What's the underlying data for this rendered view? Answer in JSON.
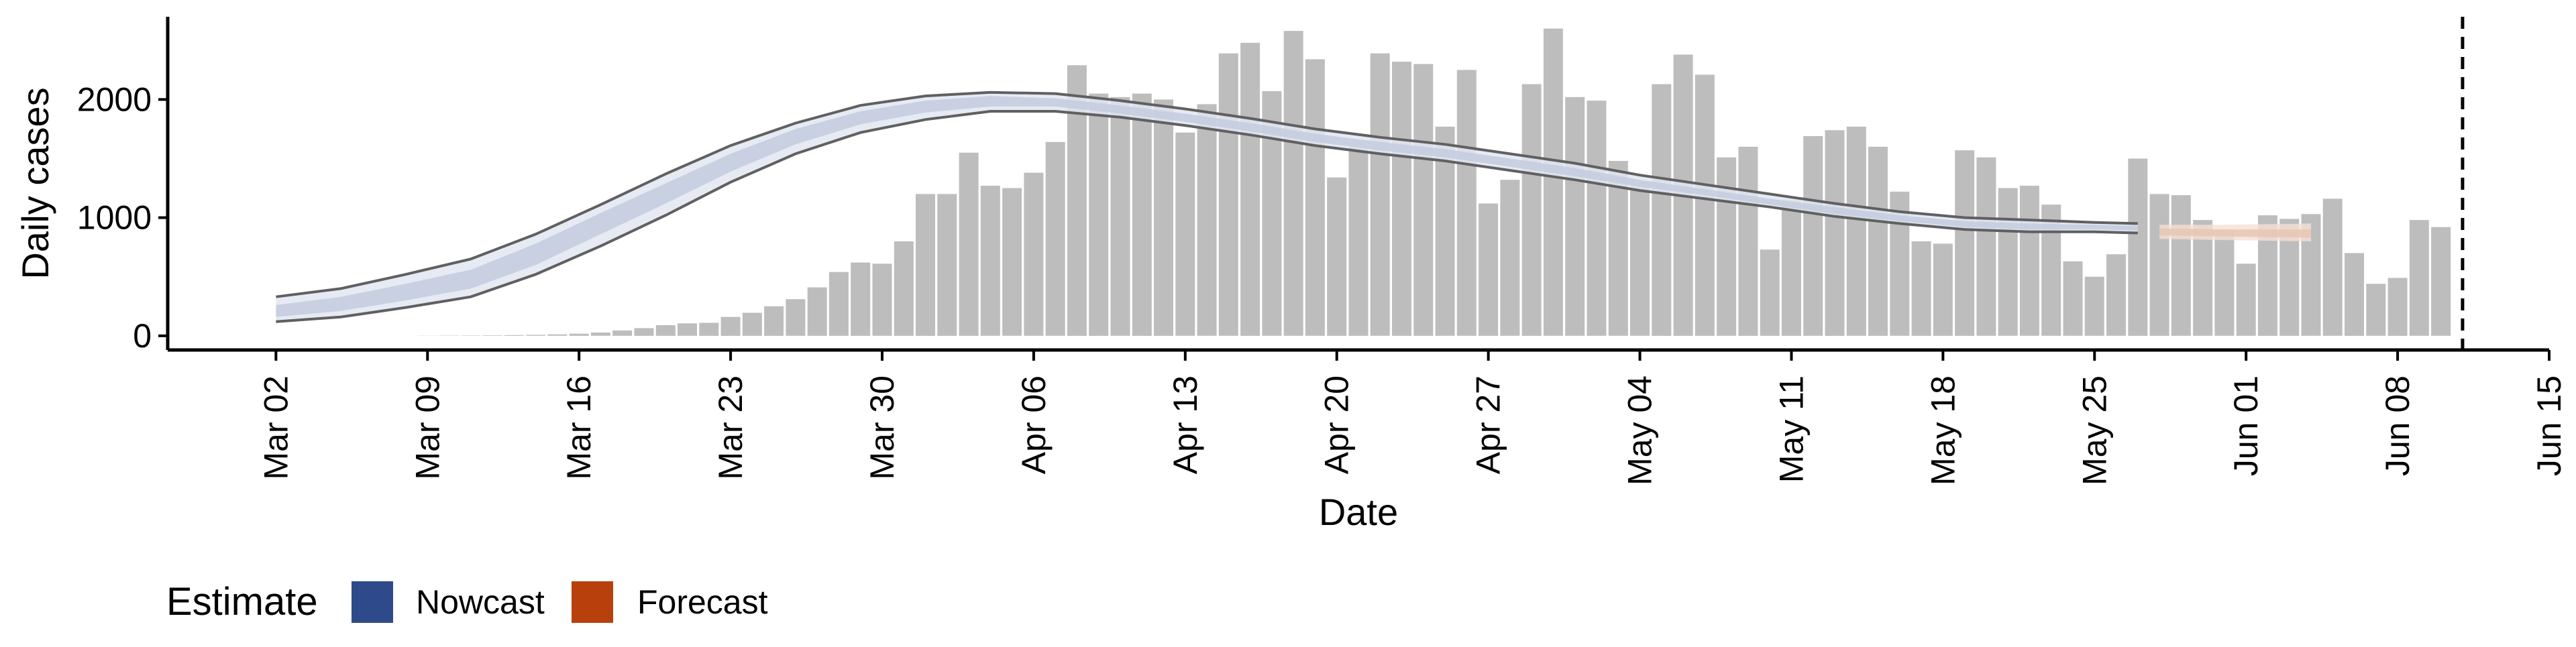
{
  "chart_data": {
    "type": "bar",
    "xlabel": "Date",
    "ylabel": "Daily cases",
    "x_ticks": [
      "Mar 02",
      "Mar 09",
      "Mar 16",
      "Mar 23",
      "Mar 30",
      "Apr 06",
      "Apr 13",
      "Apr 20",
      "Apr 27",
      "May 04",
      "May 11",
      "May 18",
      "May 25",
      "Jun 01",
      "Jun 08",
      "Jun 15"
    ],
    "y_ticks": [
      "0",
      "1000",
      "2000"
    ],
    "ylim": [
      -120,
      2700
    ],
    "xlim_days": [
      -5,
      105
    ],
    "grid": false,
    "legend": {
      "title": "Estimate",
      "position": "bottom-left",
      "entries": [
        {
          "label": "Nowcast",
          "color": "#2f4a8a"
        },
        {
          "label": "Forecast",
          "color": "#b8400d"
        }
      ]
    },
    "colors": {
      "bars": "#bdbdbd",
      "nowcast_band_outer": "#e1e6f1",
      "nowcast_band_inner": "#c5cde0",
      "band_edge_lines": "#606060",
      "forecast_band_outer": "#f4e0d5",
      "forecast_band_inner": "#e8c6b4",
      "vline": "#000000"
    },
    "vline_date": "Jun 11",
    "cases": [
      {
        "date": "Mar 02",
        "value": 0
      },
      {
        "date": "Mar 03",
        "value": 0
      },
      {
        "date": "Mar 04",
        "value": 0
      },
      {
        "date": "Mar 05",
        "value": 0
      },
      {
        "date": "Mar 06",
        "value": 0
      },
      {
        "date": "Mar 07",
        "value": 0
      },
      {
        "date": "Mar 08",
        "value": 0
      },
      {
        "date": "Mar 09",
        "value": 1
      },
      {
        "date": "Mar 10",
        "value": 2
      },
      {
        "date": "Mar 11",
        "value": 3
      },
      {
        "date": "Mar 12",
        "value": 4
      },
      {
        "date": "Mar 13",
        "value": 6
      },
      {
        "date": "Mar 14",
        "value": 8
      },
      {
        "date": "Mar 15",
        "value": 12
      },
      {
        "date": "Mar 16",
        "value": 18
      },
      {
        "date": "Mar 17",
        "value": 28
      },
      {
        "date": "Mar 18",
        "value": 45
      },
      {
        "date": "Mar 19",
        "value": 65
      },
      {
        "date": "Mar 20",
        "value": 90
      },
      {
        "date": "Mar 21",
        "value": 105
      },
      {
        "date": "Mar 22",
        "value": 110
      },
      {
        "date": "Mar 23",
        "value": 160
      },
      {
        "date": "Mar 24",
        "value": 195
      },
      {
        "date": "Mar 25",
        "value": 250
      },
      {
        "date": "Mar 26",
        "value": 310
      },
      {
        "date": "Mar 27",
        "value": 410
      },
      {
        "date": "Mar 28",
        "value": 540
      },
      {
        "date": "Mar 29",
        "value": 620
      },
      {
        "date": "Mar 30",
        "value": 610
      },
      {
        "date": "Mar 31",
        "value": 800
      },
      {
        "date": "Apr 01",
        "value": 1200
      },
      {
        "date": "Apr 02",
        "value": 1200
      },
      {
        "date": "Apr 03",
        "value": 1550
      },
      {
        "date": "Apr 04",
        "value": 1270
      },
      {
        "date": "Apr 05",
        "value": 1250
      },
      {
        "date": "Apr 06",
        "value": 1380
      },
      {
        "date": "Apr 07",
        "value": 1640
      },
      {
        "date": "Apr 08",
        "value": 2290
      },
      {
        "date": "Apr 09",
        "value": 2050
      },
      {
        "date": "Apr 10",
        "value": 2020
      },
      {
        "date": "Apr 11",
        "value": 2050
      },
      {
        "date": "Apr 12",
        "value": 2000
      },
      {
        "date": "Apr 13",
        "value": 1720
      },
      {
        "date": "Apr 14",
        "value": 1960
      },
      {
        "date": "Apr 15",
        "value": 2390
      },
      {
        "date": "Apr 16",
        "value": 2480
      },
      {
        "date": "Apr 17",
        "value": 2070
      },
      {
        "date": "Apr 18",
        "value": 2580
      },
      {
        "date": "Apr 19",
        "value": 2340
      },
      {
        "date": "Apr 20",
        "value": 1340
      },
      {
        "date": "Apr 21",
        "value": 1600
      },
      {
        "date": "Apr 22",
        "value": 2390
      },
      {
        "date": "Apr 23",
        "value": 2320
      },
      {
        "date": "Apr 24",
        "value": 2300
      },
      {
        "date": "Apr 25",
        "value": 1770
      },
      {
        "date": "Apr 26",
        "value": 2250
      },
      {
        "date": "Apr 27",
        "value": 1120
      },
      {
        "date": "Apr 28",
        "value": 1320
      },
      {
        "date": "Apr 29",
        "value": 2130
      },
      {
        "date": "Apr 30",
        "value": 2600
      },
      {
        "date": "May 01",
        "value": 2020
      },
      {
        "date": "May 02",
        "value": 1990
      },
      {
        "date": "May 03",
        "value": 1480
      },
      {
        "date": "May 04",
        "value": 1300
      },
      {
        "date": "May 05",
        "value": 2130
      },
      {
        "date": "May 06",
        "value": 2380
      },
      {
        "date": "May 07",
        "value": 2210
      },
      {
        "date": "May 08",
        "value": 1510
      },
      {
        "date": "May 09",
        "value": 1600
      },
      {
        "date": "May 10",
        "value": 730
      },
      {
        "date": "May 11",
        "value": 1150
      },
      {
        "date": "May 12",
        "value": 1690
      },
      {
        "date": "May 13",
        "value": 1740
      },
      {
        "date": "May 14",
        "value": 1770
      },
      {
        "date": "May 15",
        "value": 1600
      },
      {
        "date": "May 16",
        "value": 1220
      },
      {
        "date": "May 17",
        "value": 800
      },
      {
        "date": "May 18",
        "value": 780
      },
      {
        "date": "May 19",
        "value": 1570
      },
      {
        "date": "May 20",
        "value": 1510
      },
      {
        "date": "May 21",
        "value": 1250
      },
      {
        "date": "May 22",
        "value": 1270
      },
      {
        "date": "May 23",
        "value": 1110
      },
      {
        "date": "May 24",
        "value": 630
      },
      {
        "date": "May 25",
        "value": 500
      },
      {
        "date": "May 26",
        "value": 690
      },
      {
        "date": "May 27",
        "value": 1500
      },
      {
        "date": "May 28",
        "value": 1200
      },
      {
        "date": "May 29",
        "value": 1190
      },
      {
        "date": "May 30",
        "value": 980
      },
      {
        "date": "May 31",
        "value": 900
      },
      {
        "date": "Jun 01",
        "value": 610
      },
      {
        "date": "Jun 02",
        "value": 1020
      },
      {
        "date": "Jun 03",
        "value": 990
      },
      {
        "date": "Jun 04",
        "value": 1030
      },
      {
        "date": "Jun 05",
        "value": 1160
      },
      {
        "date": "Jun 06",
        "value": 700
      },
      {
        "date": "Jun 07",
        "value": 440
      },
      {
        "date": "Jun 08",
        "value": 490
      },
      {
        "date": "Jun 09",
        "value": 980
      },
      {
        "date": "Jun 10",
        "value": 920
      }
    ],
    "nowcast": {
      "estimate": "Nowcast",
      "points": [
        {
          "date": "Mar 02",
          "lower": 120,
          "inner_lower": 160,
          "inner_upper": 260,
          "upper": 330
        },
        {
          "date": "Mar 05",
          "lower": 160,
          "inner_lower": 210,
          "inner_upper": 330,
          "upper": 400
        },
        {
          "date": "Mar 08",
          "lower": 240,
          "inner_lower": 300,
          "inner_upper": 440,
          "upper": 520
        },
        {
          "date": "Mar 11",
          "lower": 330,
          "inner_lower": 400,
          "inner_upper": 560,
          "upper": 650
        },
        {
          "date": "Mar 14",
          "lower": 520,
          "inner_lower": 600,
          "inner_upper": 780,
          "upper": 860
        },
        {
          "date": "Mar 17",
          "lower": 760,
          "inner_lower": 860,
          "inner_upper": 1040,
          "upper": 1110
        },
        {
          "date": "Mar 20",
          "lower": 1020,
          "inner_lower": 1120,
          "inner_upper": 1290,
          "upper": 1370
        },
        {
          "date": "Mar 23",
          "lower": 1300,
          "inner_lower": 1390,
          "inner_upper": 1540,
          "upper": 1610
        },
        {
          "date": "Mar 26",
          "lower": 1540,
          "inner_lower": 1620,
          "inner_upper": 1750,
          "upper": 1800
        },
        {
          "date": "Mar 29",
          "lower": 1720,
          "inner_lower": 1790,
          "inner_upper": 1900,
          "upper": 1950
        },
        {
          "date": "Apr 01",
          "lower": 1830,
          "inner_lower": 1890,
          "inner_upper": 1990,
          "upper": 2030
        },
        {
          "date": "Apr 04",
          "lower": 1900,
          "inner_lower": 1940,
          "inner_upper": 2030,
          "upper": 2060
        },
        {
          "date": "Apr 07",
          "lower": 1900,
          "inner_lower": 1940,
          "inner_upper": 2010,
          "upper": 2050
        },
        {
          "date": "Apr 10",
          "lower": 1850,
          "inner_lower": 1880,
          "inner_upper": 1950,
          "upper": 1990
        },
        {
          "date": "Apr 13",
          "lower": 1780,
          "inner_lower": 1810,
          "inner_upper": 1880,
          "upper": 1920
        },
        {
          "date": "Apr 16",
          "lower": 1700,
          "inner_lower": 1730,
          "inner_upper": 1800,
          "upper": 1840
        },
        {
          "date": "Apr 19",
          "lower": 1610,
          "inner_lower": 1640,
          "inner_upper": 1710,
          "upper": 1750
        },
        {
          "date": "Apr 22",
          "lower": 1540,
          "inner_lower": 1570,
          "inner_upper": 1640,
          "upper": 1680
        },
        {
          "date": "Apr 25",
          "lower": 1480,
          "inner_lower": 1510,
          "inner_upper": 1580,
          "upper": 1620
        },
        {
          "date": "Apr 28",
          "lower": 1400,
          "inner_lower": 1430,
          "inner_upper": 1500,
          "upper": 1540
        },
        {
          "date": "May 01",
          "lower": 1320,
          "inner_lower": 1350,
          "inner_upper": 1420,
          "upper": 1460
        },
        {
          "date": "May 04",
          "lower": 1230,
          "inner_lower": 1260,
          "inner_upper": 1320,
          "upper": 1360
        },
        {
          "date": "May 07",
          "lower": 1160,
          "inner_lower": 1190,
          "inner_upper": 1240,
          "upper": 1280
        },
        {
          "date": "May 10",
          "lower": 1090,
          "inner_lower": 1110,
          "inner_upper": 1160,
          "upper": 1200
        },
        {
          "date": "May 13",
          "lower": 1010,
          "inner_lower": 1030,
          "inner_upper": 1090,
          "upper": 1120
        },
        {
          "date": "May 16",
          "lower": 950,
          "inner_lower": 970,
          "inner_upper": 1020,
          "upper": 1050
        },
        {
          "date": "May 19",
          "lower": 900,
          "inner_lower": 920,
          "inner_upper": 970,
          "upper": 1000
        },
        {
          "date": "May 22",
          "lower": 880,
          "inner_lower": 900,
          "inner_upper": 950,
          "upper": 980
        },
        {
          "date": "May 25",
          "lower": 880,
          "inner_lower": 900,
          "inner_upper": 940,
          "upper": 960
        },
        {
          "date": "May 27",
          "lower": 870,
          "inner_lower": 890,
          "inner_upper": 930,
          "upper": 950
        }
      ]
    },
    "forecast": {
      "estimate": "Forecast",
      "points": [
        {
          "date": "May 28",
          "lower": 820,
          "inner_lower": 850,
          "inner_upper": 910,
          "upper": 940
        },
        {
          "date": "May 31",
          "lower": 810,
          "inner_lower": 840,
          "inner_upper": 900,
          "upper": 940
        },
        {
          "date": "Jun 04",
          "lower": 800,
          "inner_lower": 830,
          "inner_upper": 900,
          "upper": 950
        }
      ]
    }
  }
}
